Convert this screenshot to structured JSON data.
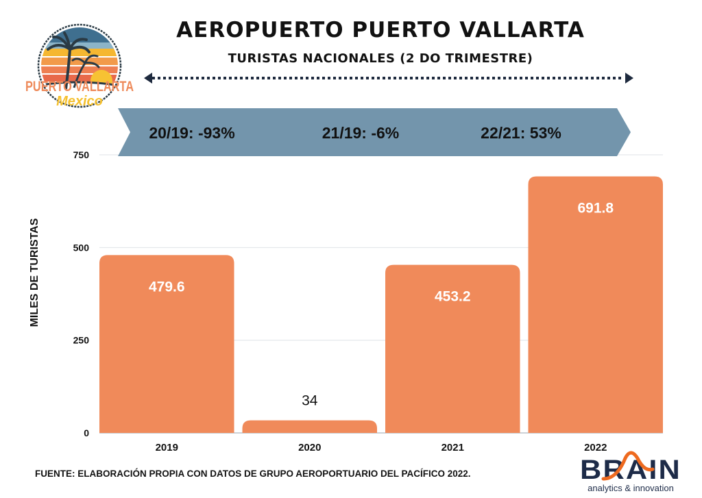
{
  "header": {
    "title": "AEROPUERTO PUERTO VALLARTA",
    "subtitle": "TURISTAS NACIONALES (2 DO TRIMESTRE)"
  },
  "logo": {
    "text_main": "PUERTO VALLARTA",
    "text_script": "Mexico",
    "icon": "palm-sunset-badge-icon"
  },
  "banner": {
    "items": [
      "20/19: -93%",
      "21/19: -6%",
      "22/21: 53%"
    ],
    "color": "#7395AC"
  },
  "footer": {
    "source": "FUENTE: ELABORACIÓN PROPIA CON DATOS DE GRUPO AEROPORTUARIO DEL PACÍFICO 2022."
  },
  "brand": {
    "name": "BRAIN",
    "tagline": "analytics & innovation"
  },
  "chart_data": {
    "type": "bar",
    "title": "AEROPUERTO PUERTO VALLARTA",
    "subtitle": "TURISTAS NACIONALES (2 DO TRIMESTRE)",
    "xlabel": "",
    "ylabel": "MILES DE TURISTAS",
    "categories": [
      "2019",
      "2020",
      "2021",
      "2022"
    ],
    "values": [
      479.6,
      34,
      453.2,
      691.8
    ],
    "data_labels": [
      "479.6",
      "34",
      "453.2",
      "691.8"
    ],
    "ylim": [
      0,
      750
    ],
    "yticks": [
      0,
      250,
      500,
      750
    ],
    "ytick_labels": [
      "0",
      "250",
      "500",
      "750"
    ],
    "grid": true,
    "legend": "none",
    "bar_color": "#F08A5A"
  }
}
